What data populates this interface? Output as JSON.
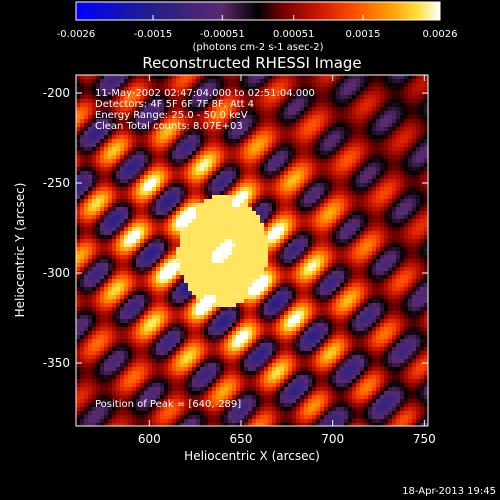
{
  "chart_data": {
    "type": "heatmap",
    "title": "Reconstructed RHESSI Image",
    "xlabel": "Heliocentric X (arcsec)",
    "ylabel": "Heliocentric Y (arcsec)",
    "xlim": [
      560,
      752
    ],
    "ylim": [
      -385,
      -190
    ],
    "xticks": [
      600,
      650,
      700,
      750
    ],
    "yticks": [
      -200,
      -250,
      -300,
      -350
    ],
    "colorbar": {
      "ticks": [
        "-0.0026",
        "-0.0015",
        "-0.00051",
        "0.00051",
        "0.0015",
        "0.0026"
      ],
      "range": [
        -0.0026,
        0.0026
      ],
      "unit_label": "(photons cm-2 s-1 asec-2)"
    },
    "annotations": [
      "11-May-2002 02:47:04.000 to 02:51:04.000",
      "Detectors: 4F 5F 6F 7F 8F, Att 4",
      "Energy Range: 25.0 - 50.0 keV",
      "Clean    Total counts: 8.07E+03"
    ],
    "peak_label": "Position of Peak = [640,-289]",
    "peak": [
      640,
      -289
    ],
    "timestamp": "18-Apr-2013 19:45",
    "colors": {
      "background": "#000000",
      "text": "#ffffff"
    }
  }
}
